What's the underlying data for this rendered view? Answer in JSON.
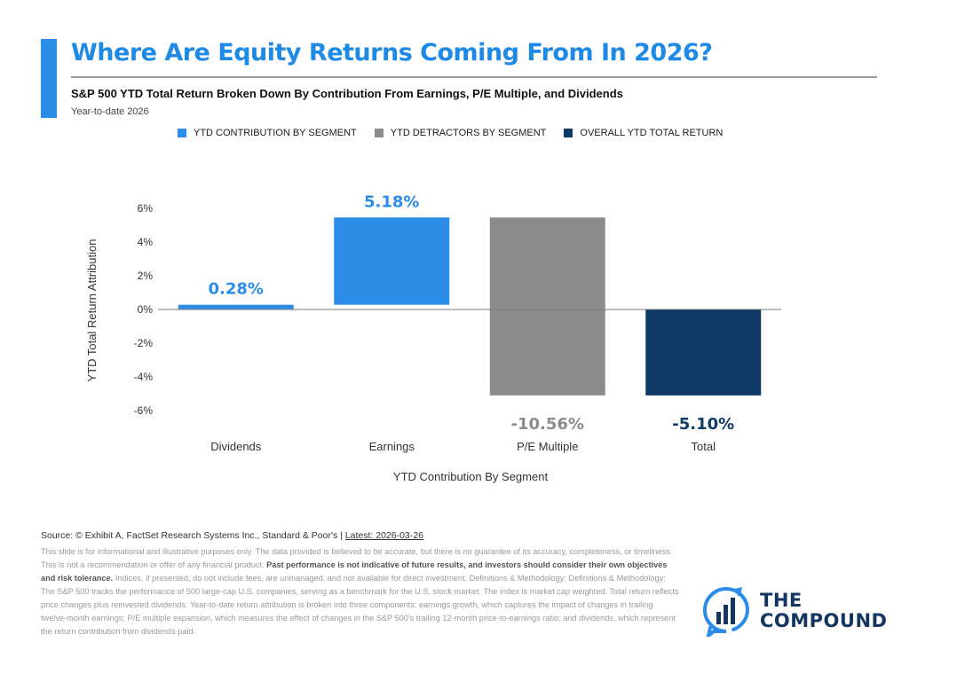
{
  "header": {
    "title": "Where Are Equity Returns Coming From In 2026?",
    "subtitle": "S&P 500 YTD Total Return Broken Down By Contribution From Earnings, P/E Multiple, and Dividends",
    "period": "Year-to-date 2026"
  },
  "legend": [
    {
      "label": "YTD CONTRIBUTION BY SEGMENT",
      "color": "#2b8de8"
    },
    {
      "label": "YTD DETRACTORS BY SEGMENT",
      "color": "#8c8c8c"
    },
    {
      "label": "OVERALL YTD TOTAL RETURN",
      "color": "#0f3a66"
    }
  ],
  "chart_data": {
    "type": "bar",
    "categories": [
      "Dividends",
      "Earnings",
      "P/E Multiple",
      "Total"
    ],
    "values": [
      0.28,
      5.18,
      -10.56,
      -5.1
    ],
    "data_labels": [
      "0.28%",
      "5.18%",
      "-10.56%",
      "-5.10%"
    ],
    "colors": [
      "#2b8de8",
      "#2b8de8",
      "#8c8c8c",
      "#0f3a66"
    ],
    "label_colors": [
      "#2b8de8",
      "#2b8de8",
      "#8c8c8c",
      "#0f3a66"
    ],
    "yticks": [
      6,
      4,
      2,
      0,
      -2,
      -4,
      -6
    ],
    "ytick_labels": [
      "6%",
      "4%",
      "2%",
      "0%",
      "-2%",
      "-4%",
      "-6%"
    ],
    "ylim": [
      -6,
      6
    ],
    "xlabel": "YTD Contribution By Segment",
    "ylabel": "YTD Total Return Attribution",
    "grid": false
  },
  "footer": {
    "source": "Source: © Exhibit A, FactSet Research Systems Inc., Standard & Poor's | ",
    "latest": "Latest: 2026-03-26",
    "disc_1": "This slide is for informational and illustrative purposes only. The data provided is believed to be accurate, but there is no guarantee of its accuracy, completeness, or timeliness. This is not a recommendation or offer of any financial product. ",
    "disc_bold": "Past performance is not indicative of future results, and investors should consider their own objectives and risk tolerance.",
    "disc_2": " Indices, if presented, do not include fees, are unmanaged, and not available for direct investment. Definitions & Methodology: Definitions & Methodology: The S&P 500 tracks the performance of 500 large-cap U.S. companies, serving as a benchmark for the U.S. stock market. The index is market cap weighted. Total return reflects price changes plus reinvested dividends. Year-to-date return attribution is broken into three components: earnings growth, which captures the impact of changes in trailing twelve-month earnings; P/E multiple expansion, which measures the effect of changes in the S&P 500's trailing 12-month price-to-earnings ratio; and dividends, which represent the return contribution from dividends paid."
  },
  "logo": {
    "line1": "THE",
    "line2": "COMPOUND",
    "icon": "chat-bubble-bar-chart-icon",
    "color": "#12365f"
  }
}
